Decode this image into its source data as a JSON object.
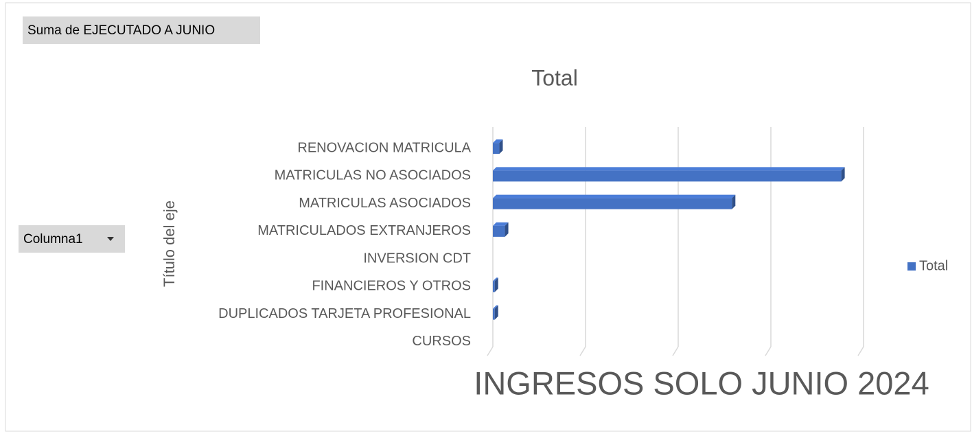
{
  "field_buttons": {
    "values": "Suma de EJECUTADO A JUNIO",
    "axis": "Columna1"
  },
  "caption": "INGRESOS SOLO JUNIO 2024",
  "chart_data": {
    "type": "bar",
    "orientation": "horizontal",
    "title": "Total",
    "y_axis_title": "Título del eje",
    "categories": [
      "RENOVACION MATRICULA",
      "MATRICULAS NO ASOCIADOS",
      "MATRICULAS ASOCIADOS",
      "MATRICULADOS EXTRANJEROS",
      "INVERSION CDT",
      "FINANCIEROS Y OTROS",
      "DUPLICADOS TARJETA PROFESIONAL",
      "CURSOS"
    ],
    "series": [
      {
        "name": "Total",
        "color": "#4472c4",
        "values": [
          0.07,
          3.76,
          2.58,
          0.13,
          0,
          0.02,
          0.02,
          0
        ]
      }
    ],
    "xlim": [
      0,
      4
    ],
    "xticks": [
      0,
      1,
      2,
      3,
      4
    ],
    "grid": true,
    "legend": "right"
  }
}
